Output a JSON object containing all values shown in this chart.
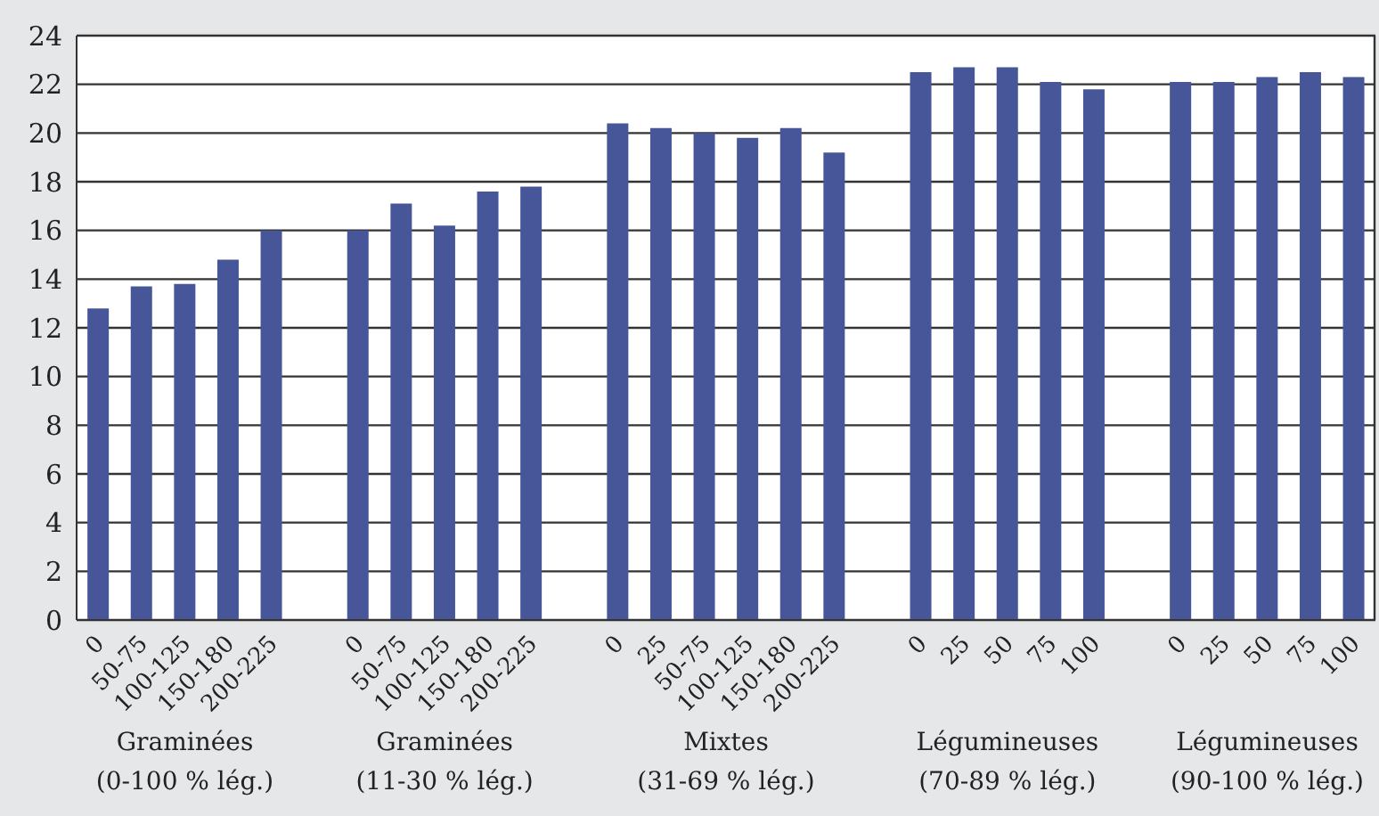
{
  "chart_data": {
    "type": "bar",
    "categories": [
      "0",
      "50-75",
      "100-125",
      "150-180",
      "200-225",
      null,
      "0",
      "50-75",
      "100-125",
      "150-180",
      "200-225",
      null,
      "0",
      "25",
      "50-75",
      "100-125",
      "150-180",
      "200-225",
      null,
      "0",
      "25",
      "50",
      "75",
      "100",
      null,
      "0",
      "25",
      "50",
      "75",
      "100"
    ],
    "values": [
      12.8,
      13.7,
      13.8,
      14.8,
      16.0,
      null,
      16.0,
      17.1,
      16.2,
      17.6,
      17.8,
      null,
      20.4,
      20.2,
      20.0,
      19.8,
      20.2,
      19.2,
      null,
      22.5,
      22.7,
      22.7,
      22.1,
      21.8,
      null,
      22.1,
      22.1,
      22.3,
      22.5,
      22.3
    ],
    "color": "#465699",
    "ylim": [
      0,
      24
    ],
    "yticks": [
      0,
      2,
      4,
      6,
      8,
      10,
      12,
      14,
      16,
      18,
      20,
      22,
      24
    ],
    "grid": "y",
    "annotations": [
      "Graminées\n(0-100 % lég.)",
      "Graminées\n(11-30 % lég.)",
      "Mixtes\n(31-69 % lég.)",
      "Légumineuses\n(70-89 % lég.)",
      "Légumineuses\n(90-100 % lég.)"
    ]
  }
}
